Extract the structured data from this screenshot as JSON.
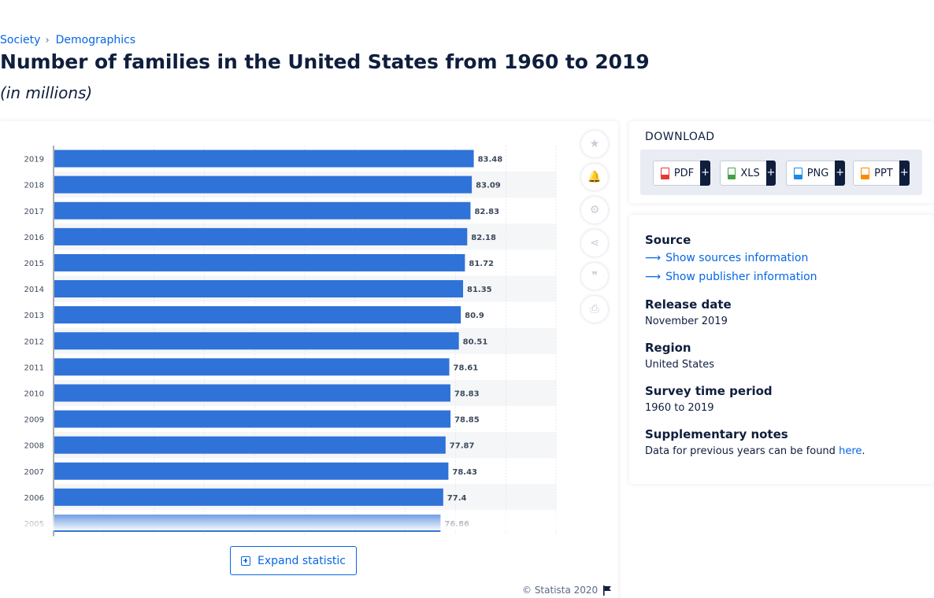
{
  "breadcrumb": {
    "items": [
      "Society",
      "Demographics"
    ],
    "separator": "›"
  },
  "header": {
    "title": "Number of families in the United States from 1960 to 2019",
    "subtitle": "(in millions)"
  },
  "tools": [
    {
      "name": "favorite",
      "icon": "star-icon",
      "glyph": "★"
    },
    {
      "name": "notification",
      "icon": "bell-icon",
      "glyph": "🔔"
    },
    {
      "name": "settings",
      "icon": "gear-icon",
      "glyph": "⚙"
    },
    {
      "name": "share",
      "icon": "share-icon",
      "glyph": "⋖"
    },
    {
      "name": "cite",
      "icon": "quote-icon",
      "glyph": "❞"
    },
    {
      "name": "print",
      "icon": "print-icon",
      "glyph": "⎙"
    }
  ],
  "expand_label": "Expand statistic",
  "copyright": "© Statista 2020",
  "download": {
    "title": "DOWNLOAD",
    "formats": [
      {
        "label": "PDF",
        "color": "#e53935"
      },
      {
        "label": "XLS",
        "color": "#43a047"
      },
      {
        "label": "PNG",
        "color": "#1e88e5"
      },
      {
        "label": "PPT",
        "color": "#fb8c00"
      }
    ],
    "plus": "+"
  },
  "info": {
    "source_heading": "Source",
    "show_sources": "Show sources information",
    "show_publisher": "Show publisher information",
    "release_heading": "Release date",
    "release_value": "November 2019",
    "region_heading": "Region",
    "region_value": "United States",
    "survey_heading": "Survey time period",
    "survey_value": "1960 to 2019",
    "notes_heading": "Supplementary notes",
    "notes_text": "Data for previous years can be found",
    "notes_link": "here",
    "notes_end": "."
  },
  "colors": {
    "bar": "#2f72d8",
    "accent": "#0666e5",
    "text": "#0f1e3d"
  },
  "chart_data": {
    "type": "bar",
    "orientation": "horizontal",
    "categories": [
      "2019",
      "2018",
      "2017",
      "2016",
      "2015",
      "2014",
      "2013",
      "2012",
      "2011",
      "2010",
      "2009",
      "2008",
      "2007",
      "2006",
      "2005"
    ],
    "values": [
      83.48,
      83.09,
      82.83,
      82.18,
      81.72,
      81.35,
      80.9,
      80.51,
      78.61,
      78.83,
      78.85,
      77.87,
      78.43,
      77.4,
      76.86
    ],
    "value_labels": [
      "83.48",
      "83.09",
      "82.83",
      "82.18",
      "81.72",
      "81.35",
      "80.9",
      "80.51",
      "78.61",
      "78.83",
      "78.85",
      "77.87",
      "78.43",
      "77.4",
      "76.86"
    ],
    "xlim": [
      0,
      100
    ],
    "grid": true,
    "title": "",
    "xlabel": "",
    "ylabel": ""
  }
}
